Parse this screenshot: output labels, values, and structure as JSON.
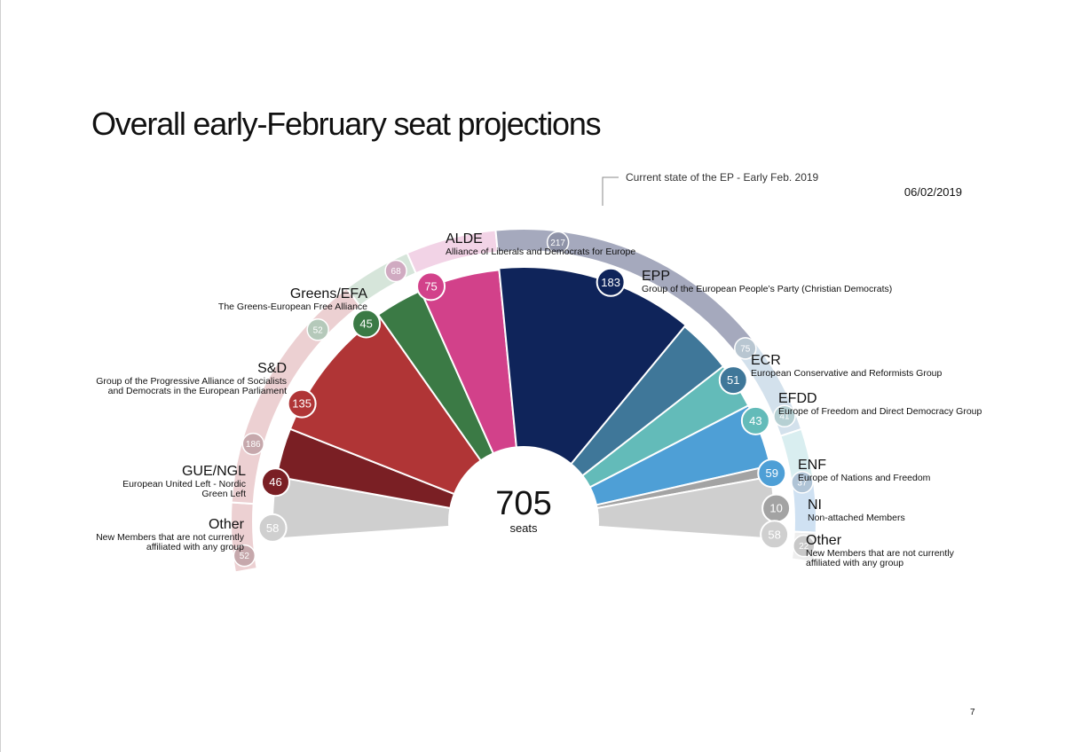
{
  "slide": {
    "title": "Overall early-February seat projections",
    "date": "06/02/2019",
    "page_number": "7"
  },
  "chart_data": {
    "type": "parliament-hemicycle",
    "title": "Overall early-February seat projections",
    "total_seats": "705",
    "total_unit": "seats",
    "projection": {
      "series_name": "Early-February seat projections",
      "left_groups": [
        {
          "id": "other_left",
          "abbr": "Other",
          "name": "New Members that are not currently affiliated with any group",
          "seats": 58,
          "color": "#cfcfcf"
        },
        {
          "id": "gue_ngl",
          "abbr": "GUE/NGL",
          "name": "European United Left - Nordic Green Left",
          "seats": 46,
          "color": "#7a1f24"
        },
        {
          "id": "s_d",
          "abbr": "S&D",
          "name": "Group of the Progressive Alliance of Socialists and Democrats in the European Parliament",
          "seats": 135,
          "color": "#b03536"
        },
        {
          "id": "greens_efa",
          "abbr": "Greens/EFA",
          "name": "The Greens-European Free Alliance",
          "seats": 45,
          "color": "#3b7a45"
        },
        {
          "id": "alde",
          "abbr": "ALDE",
          "name": "Alliance of Liberals and Democrats for Europe",
          "seats": 75,
          "color": "#d2418a"
        },
        {
          "id": "epp",
          "abbr": "EPP",
          "name": "Group of the European People’s Party (Christian Democrats)",
          "seats": 183,
          "color": "#0f245a"
        },
        {
          "id": "ecr",
          "abbr": "ECR",
          "name": "European Conservative and Reformists Group",
          "seats": 51,
          "color": "#3f7799"
        },
        {
          "id": "efdd",
          "abbr": "EFDD",
          "name": "Europe of Freedom and Direct Democracy Group",
          "seats": 43,
          "color": "#63bbb9"
        },
        {
          "id": "enf",
          "abbr": "ENF",
          "name": "Europe of Nations and Freedom",
          "seats": 59,
          "color": "#4e9fd6"
        },
        {
          "id": "ni",
          "abbr": "NI",
          "name": "Non-attached Members",
          "seats": 10,
          "color": "#a3a3a3"
        }
      ],
      "right_other": {
        "id": "other_right",
        "abbr": "Other",
        "name": "New Members that are not currently affiliated with any group",
        "seats": 58,
        "color": "#cfcfcf"
      }
    },
    "current_state": {
      "label": "Current state of the EP - Early Feb. 2019",
      "groups": [
        {
          "id": "other_left",
          "seats": 52,
          "color": "#ecd0d2",
          "badge": "#c6a8ac"
        },
        {
          "id": "s_d",
          "seats": 186,
          "color": "#ecd0d2",
          "badge": "#c6a8ac"
        },
        {
          "id": "greens_efa",
          "seats": 52,
          "color": "#d6e5da",
          "badge": "#b5c9ba"
        },
        {
          "id": "alde",
          "seats": 68,
          "color": "#f2d3e6",
          "badge": "#d0aac1"
        },
        {
          "id": "epp",
          "seats": 217,
          "color": "#a5a9bd",
          "badge": "#8f93a8"
        },
        {
          "id": "ecr",
          "seats": 75,
          "color": "#d3e1ec",
          "badge": "#b8c6d1"
        },
        {
          "id": "efdd",
          "seats": 41,
          "color": "#d9eef0",
          "badge": "#b6d0d3"
        },
        {
          "id": "enf",
          "seats": 37,
          "color": "#cfe1f2",
          "badge": "#b0c4d6"
        },
        {
          "id": "other_right",
          "seats": 22,
          "color": "#eeeeee",
          "badge": "#c8c8c8"
        }
      ]
    }
  }
}
